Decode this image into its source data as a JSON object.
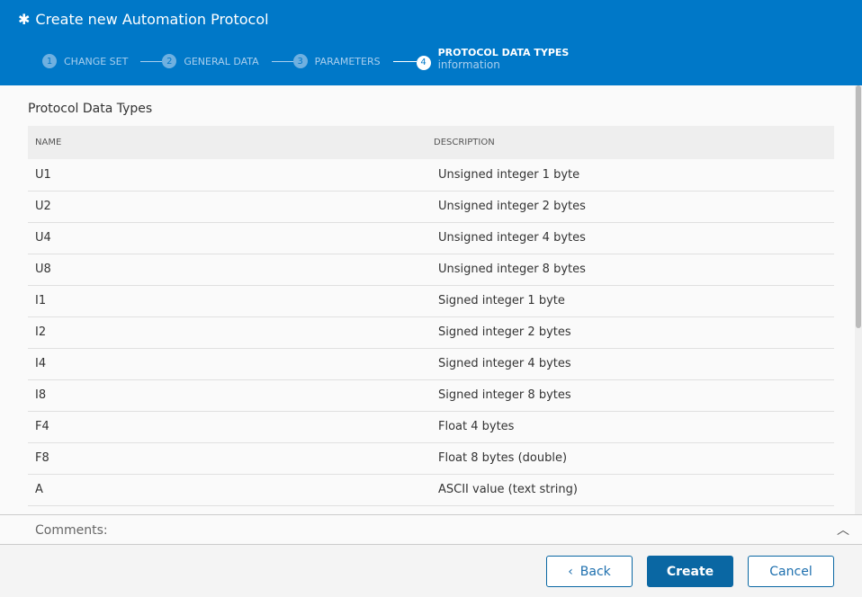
{
  "header": {
    "title": "Create new Automation Protocol",
    "icon": "asterisk-icon",
    "steps": [
      {
        "num": "1",
        "label": "CHANGE SET"
      },
      {
        "num": "2",
        "label": "GENERAL DATA"
      },
      {
        "num": "3",
        "label": "PARAMETERS"
      },
      {
        "num": "4",
        "label": "PROTOCOL DATA TYPES",
        "sub": "information"
      }
    ]
  },
  "section": {
    "title": "Protocol Data Types",
    "columns": [
      "NAME",
      "DESCRIPTION"
    ],
    "rows": [
      [
        "U1",
        "Unsigned integer 1 byte"
      ],
      [
        "U2",
        "Unsigned integer 2 bytes"
      ],
      [
        "U4",
        "Unsigned integer 4 bytes"
      ],
      [
        "U8",
        "Unsigned integer 8 bytes"
      ],
      [
        "I1",
        "Signed integer 1 byte"
      ],
      [
        "I2",
        "Signed integer 2 bytes"
      ],
      [
        "I4",
        "Signed integer 4 bytes"
      ],
      [
        "I8",
        "Signed integer 8 bytes"
      ],
      [
        "F4",
        "Float 4 bytes"
      ],
      [
        "F8",
        "Float 8 bytes (double)"
      ],
      [
        "A",
        "ASCII value (text string)"
      ]
    ]
  },
  "comments": {
    "label": "Comments:"
  },
  "footer": {
    "back": "Back",
    "create": "Create",
    "cancel": "Cancel"
  }
}
